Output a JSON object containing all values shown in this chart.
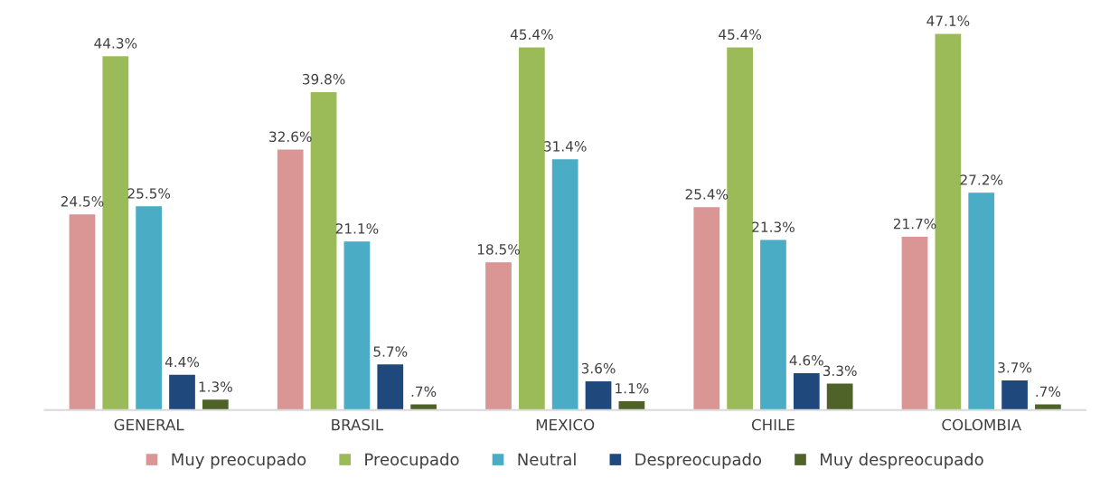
{
  "chart_data": {
    "type": "bar",
    "categories": [
      "GENERAL",
      "BRASIL",
      "MEXICO",
      "CHILE",
      "COLOMBIA"
    ],
    "series": [
      {
        "name": "Muy preocupado",
        "color": "#d99694",
        "values": [
          24.5,
          32.6,
          18.5,
          25.4,
          21.7
        ],
        "value_labels": [
          "24.5%",
          "32.6%",
          "18.5%",
          "25.4%",
          "21.7%"
        ]
      },
      {
        "name": "Preocupado",
        "color": "#9bbb59",
        "values": [
          44.3,
          39.8,
          45.4,
          45.4,
          47.1
        ],
        "value_labels": [
          "44.3%",
          "39.8%",
          "45.4%",
          "45.4%",
          "47.1%"
        ]
      },
      {
        "name": "Neutral",
        "color": "#4bacc6",
        "values": [
          25.5,
          21.1,
          31.4,
          21.3,
          27.2
        ],
        "value_labels": [
          "25.5%",
          "21.1%",
          "31.4%",
          "21.3%",
          "27.2%"
        ]
      },
      {
        "name": "Despreocupado",
        "color": "#1f497d",
        "values": [
          4.4,
          5.7,
          3.6,
          4.6,
          3.7
        ],
        "value_labels": [
          "4.4%",
          "5.7%",
          "3.6%",
          "4.6%",
          "3.7%"
        ]
      },
      {
        "name": "Muy despreocupado",
        "color": "#4f6228",
        "values": [
          1.3,
          0.7,
          1.1,
          3.3,
          0.7
        ],
        "value_labels": [
          "1.3%",
          ".7%",
          "1.1%",
          "3.3%",
          ".7%"
        ]
      }
    ],
    "legend": "bottom",
    "grid": false
  }
}
